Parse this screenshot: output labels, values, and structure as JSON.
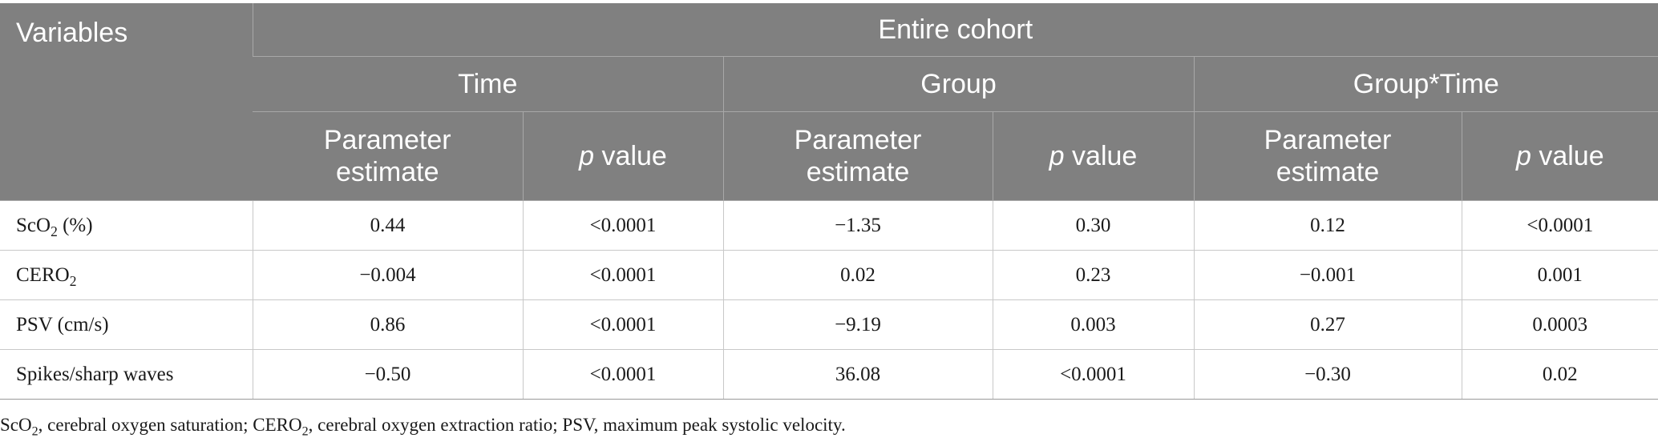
{
  "table": {
    "variables_label": "Variables",
    "cohort_label": "Entire cohort",
    "groups": [
      "Time",
      "Group",
      "Group*Time"
    ],
    "param_label_line1": "Parameter",
    "param_label_line2": "estimate",
    "p_label_italic": "p",
    "p_label_rest": " value",
    "rows": [
      {
        "var_main": "ScO",
        "var_sub": "2",
        "var_tail": " (%)",
        "values": [
          "0.44",
          "<0.0001",
          "−1.35",
          "0.30",
          "0.12",
          "<0.0001"
        ]
      },
      {
        "var_main": "CERO",
        "var_sub": "2",
        "var_tail": "",
        "values": [
          "−0.004",
          "<0.0001",
          "0.02",
          "0.23",
          "−0.001",
          "0.001"
        ]
      },
      {
        "var_main": "PSV (cm/s)",
        "var_sub": "",
        "var_tail": "",
        "values": [
          "0.86",
          "<0.0001",
          "−9.19",
          "0.003",
          "0.27",
          "0.0003"
        ]
      },
      {
        "var_main": "Spikes/sharp waves",
        "var_sub": "",
        "var_tail": "",
        "values": [
          "−0.50",
          "<0.0001",
          "36.08",
          "<0.0001",
          "−0.30",
          "0.02"
        ]
      }
    ]
  },
  "footnote": {
    "part1": "ScO",
    "sub1": "2",
    "part2": ", cerebral oxygen saturation; CERO",
    "sub2": "2",
    "part3": ", cerebral oxygen extraction ratio; PSV, maximum peak systolic velocity."
  }
}
